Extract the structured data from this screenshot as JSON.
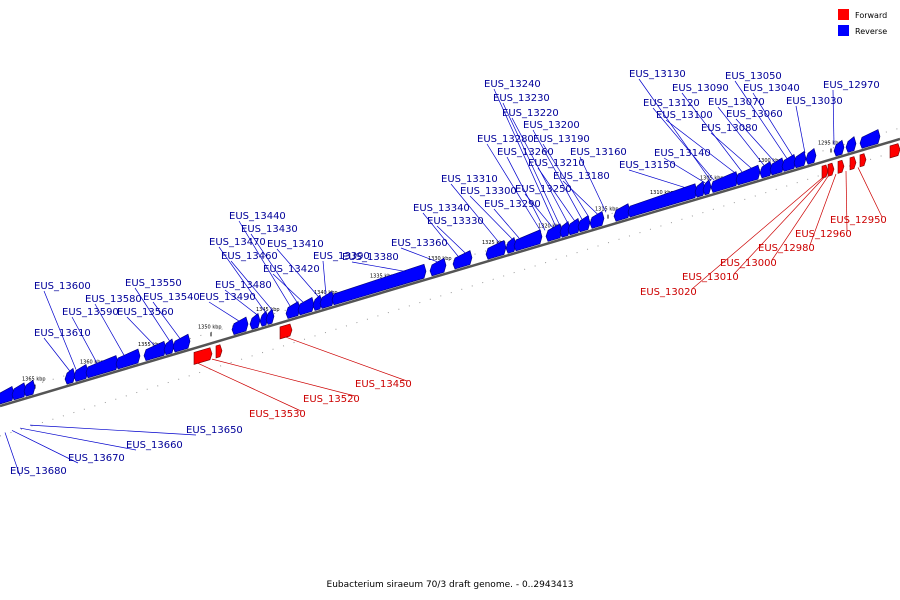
{
  "caption": "Eubacterium siraeum 70/3 draft genome. - 0..2943413",
  "legend": {
    "forward": {
      "label": "Forward",
      "color": "#ff0000"
    },
    "reverse": {
      "label": "Reverse",
      "color": "#0000ff"
    }
  },
  "colors": {
    "forward": "#ff0000",
    "reverse": "#0000ff",
    "axis": "#555555",
    "label_line": "#0000cc",
    "forward_line": "#cc0000"
  },
  "ticks": [
    "1295 kbp",
    "1300 kbp",
    "1305 kbp",
    "1310 kbp",
    "1315 kbp",
    "1320 kbp",
    "1325 kbp",
    "1330 kbp",
    "1335 kbp",
    "1340 kbp",
    "1345 kbp",
    "1350 kbp",
    "1355 kbp",
    "1360 kbp",
    "1365 kbp"
  ],
  "reverse_genes": [
    "EUS_12970",
    "EUS_13030",
    "EUS_13040",
    "EUS_13050",
    "EUS_13060",
    "EUS_13070",
    "EUS_13080",
    "EUS_13090",
    "EUS_13100",
    "EUS_13120",
    "EUS_13130",
    "EUS_13140",
    "EUS_13150",
    "EUS_13160",
    "EUS_13180",
    "EUS_13190",
    "EUS_13200",
    "EUS_13210",
    "EUS_13220",
    "EUS_13230",
    "EUS_13240",
    "EUS_13250",
    "EUS_13260",
    "EUS_13280",
    "EUS_13290",
    "EUS_13300",
    "EUS_13310",
    "EUS_13330",
    "EUS_13340",
    "EUS_13360",
    "EUS_13380",
    "EUS_13390",
    "EUS_13410",
    "EUS_13420",
    "EUS_13430",
    "EUS_13440",
    "EUS_13460",
    "EUS_13470",
    "EUS_13480",
    "EUS_13490",
    "EUS_13540",
    "EUS_13550",
    "EUS_13560",
    "EUS_13580",
    "EUS_13590",
    "EUS_13600",
    "EUS_13610",
    "EUS_13650",
    "EUS_13660",
    "EUS_13670",
    "EUS_13680"
  ],
  "forward_genes": [
    "EUS_12950",
    "EUS_12960",
    "EUS_12980",
    "EUS_13000",
    "EUS_13010",
    "EUS_13020",
    "EUS_13450",
    "EUS_13520",
    "EUS_13530"
  ]
}
